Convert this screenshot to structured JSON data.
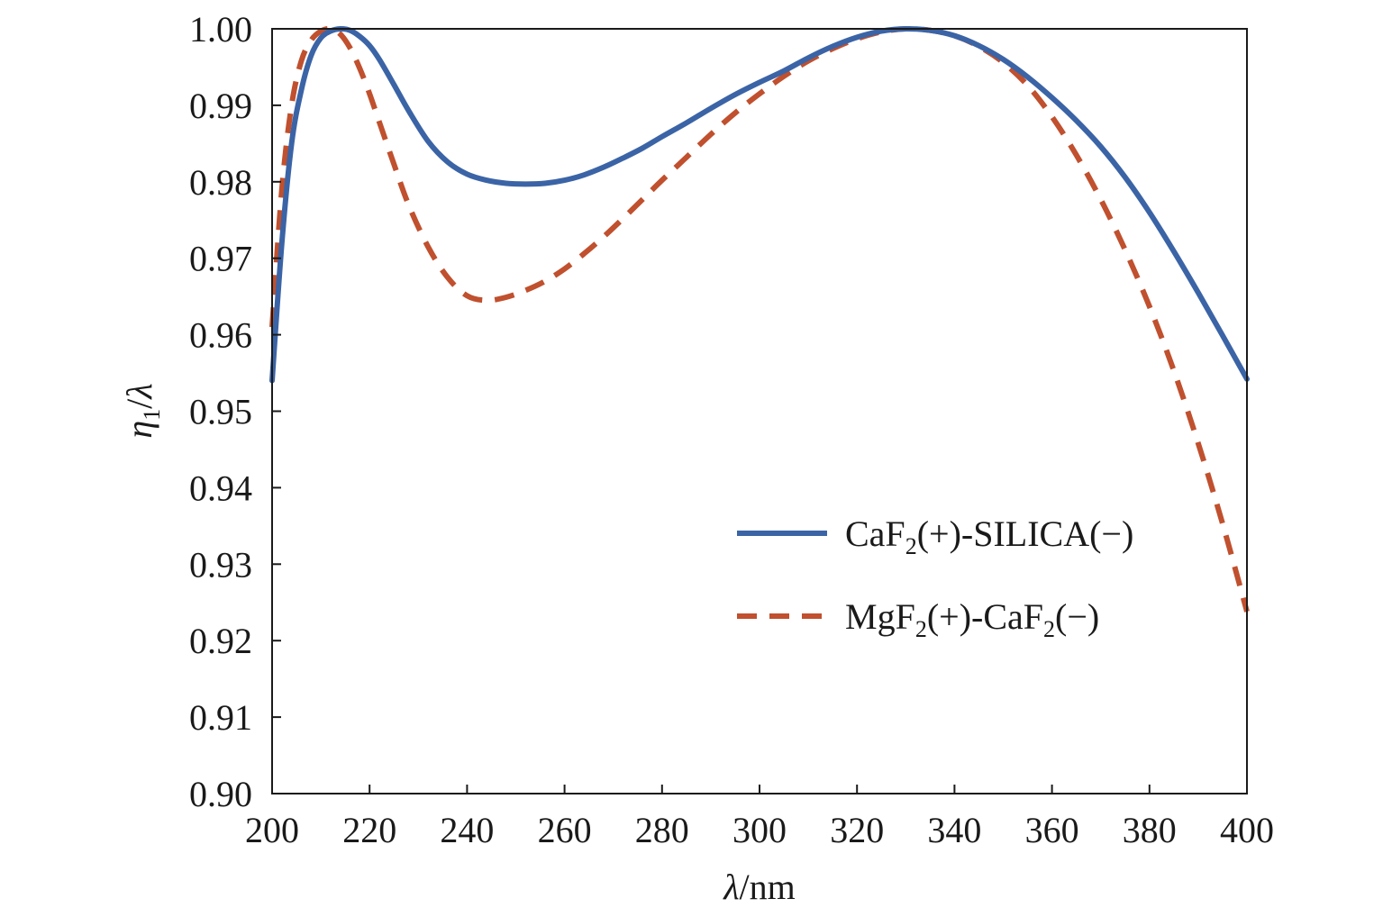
{
  "chart_data": {
    "type": "line",
    "title": "",
    "xlabel": {
      "symbol": "λ",
      "unit": "/nm"
    },
    "ylabel": {
      "symbol": "η",
      "subscript": "1",
      "slash": "/",
      "denominator": "λ"
    },
    "xlim": [
      200,
      400
    ],
    "ylim": [
      0.9,
      1.0
    ],
    "xticks": [
      "200",
      "220",
      "240",
      "260",
      "280",
      "300",
      "320",
      "340",
      "360",
      "380",
      "400"
    ],
    "yticks": [
      "0.90",
      "0.91",
      "0.92",
      "0.93",
      "0.94",
      "0.95",
      "0.96",
      "0.97",
      "0.98",
      "0.99",
      "1.00"
    ],
    "grid": false,
    "legend_position": "right-center",
    "series": [
      {
        "label_parts": [
          "CaF",
          "2",
          "(+)-SILICA(−)"
        ],
        "color": "#3b64a6",
        "style": "solid",
        "x": [
          200,
          202,
          204,
          206,
          208,
          210,
          212,
          214,
          216,
          218,
          220,
          222,
          225,
          228,
          232,
          236,
          240,
          244,
          248,
          252,
          256,
          260,
          264,
          268,
          272,
          276,
          280,
          285,
          290,
          295,
          300,
          305,
          310,
          315,
          320,
          325,
          330,
          335,
          340,
          345,
          350,
          355,
          360,
          365,
          370,
          375,
          380,
          385,
          390,
          395,
          400
        ],
        "y": [
          0.954,
          0.972,
          0.985,
          0.992,
          0.9965,
          0.9988,
          0.9997,
          1.0,
          0.9998,
          0.999,
          0.9978,
          0.996,
          0.9927,
          0.9893,
          0.9853,
          0.9826,
          0.981,
          0.9802,
          0.9798,
          0.9797,
          0.9798,
          0.9802,
          0.9809,
          0.9819,
          0.9831,
          0.9844,
          0.9859,
          0.9877,
          0.9896,
          0.9914,
          0.993,
          0.9945,
          0.9962,
          0.9977,
          0.9989,
          0.9997,
          1.0,
          0.9998,
          0.9991,
          0.9978,
          0.996,
          0.9937,
          0.991,
          0.988,
          0.9846,
          0.9806,
          0.976,
          0.9709,
          0.9655,
          0.9599,
          0.9542
        ]
      },
      {
        "label_parts": [
          "MgF",
          "2",
          "(+)-CaF",
          "2",
          "(−)"
        ],
        "color": "#c0502e",
        "style": "dashed",
        "x": [
          200,
          202,
          204,
          206,
          208,
          210,
          212,
          214,
          216,
          218,
          220,
          222,
          225,
          228,
          232,
          236,
          240,
          244,
          248,
          252,
          256,
          260,
          264,
          268,
          272,
          276,
          280,
          285,
          290,
          295,
          300,
          305,
          310,
          315,
          320,
          325,
          330,
          335,
          340,
          345,
          350,
          355,
          360,
          365,
          370,
          375,
          380,
          385,
          390,
          395,
          400
        ],
        "y": [
          0.961,
          0.979,
          0.99,
          0.9958,
          0.9985,
          0.9997,
          1.0,
          0.9993,
          0.9975,
          0.9948,
          0.9915,
          0.9878,
          0.9823,
          0.977,
          0.9715,
          0.9675,
          0.9651,
          0.9645,
          0.9649,
          0.9658,
          0.967,
          0.9686,
          0.9706,
          0.9728,
          0.9752,
          0.9777,
          0.9802,
          0.9832,
          0.9862,
          0.989,
          0.9915,
          0.9938,
          0.9958,
          0.9974,
          0.9987,
          0.9996,
          1.0,
          0.9998,
          0.9991,
          0.9977,
          0.9956,
          0.9926,
          0.9885,
          0.9835,
          0.9777,
          0.9711,
          0.9637,
          0.9553,
          0.9458,
          0.9353,
          0.9238
        ]
      }
    ]
  }
}
